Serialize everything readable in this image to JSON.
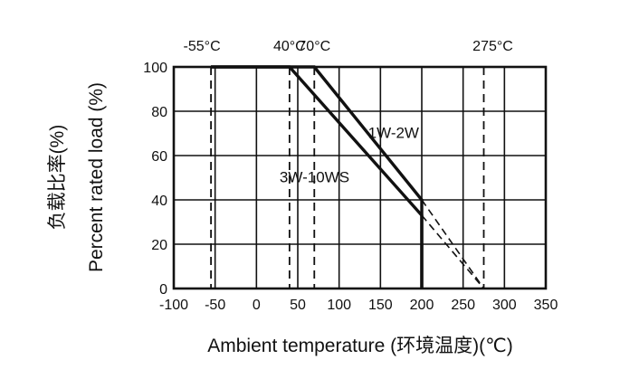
{
  "chart_data": {
    "type": "line",
    "title": "",
    "xlabel": "Ambient temperature (环境温度)(℃)",
    "ylabel": "Percent rated load (%)",
    "ylabel_cn": "负载比率(%)",
    "xlim": [
      -100,
      350
    ],
    "ylim": [
      0,
      100
    ],
    "x_ticks": [
      "-100",
      "-50",
      "0",
      "50",
      "100",
      "150",
      "200",
      "250",
      "300",
      "350"
    ],
    "y_ticks": [
      "0",
      "20",
      "40",
      "60",
      "80",
      "100"
    ],
    "grid": true,
    "reference_lines": [
      {
        "label": "-55°C",
        "x": -55
      },
      {
        "label": "40°C",
        "x": 40
      },
      {
        "label": "70°C",
        "x": 70
      },
      {
        "label": "275°C",
        "x": 275
      }
    ],
    "series": [
      {
        "name": "1W-2W",
        "x": [
          -55,
          70,
          200,
          200
        ],
        "values": [
          100,
          100,
          40,
          0
        ],
        "extension": {
          "x": [
            200,
            275
          ],
          "values": [
            40,
            0
          ]
        }
      },
      {
        "name": "3W-10WS",
        "x": [
          -55,
          40,
          200,
          200
        ],
        "values": [
          100,
          100,
          33,
          0
        ],
        "extension": {
          "x": [
            200,
            275
          ],
          "values": [
            33,
            0
          ]
        }
      }
    ]
  }
}
